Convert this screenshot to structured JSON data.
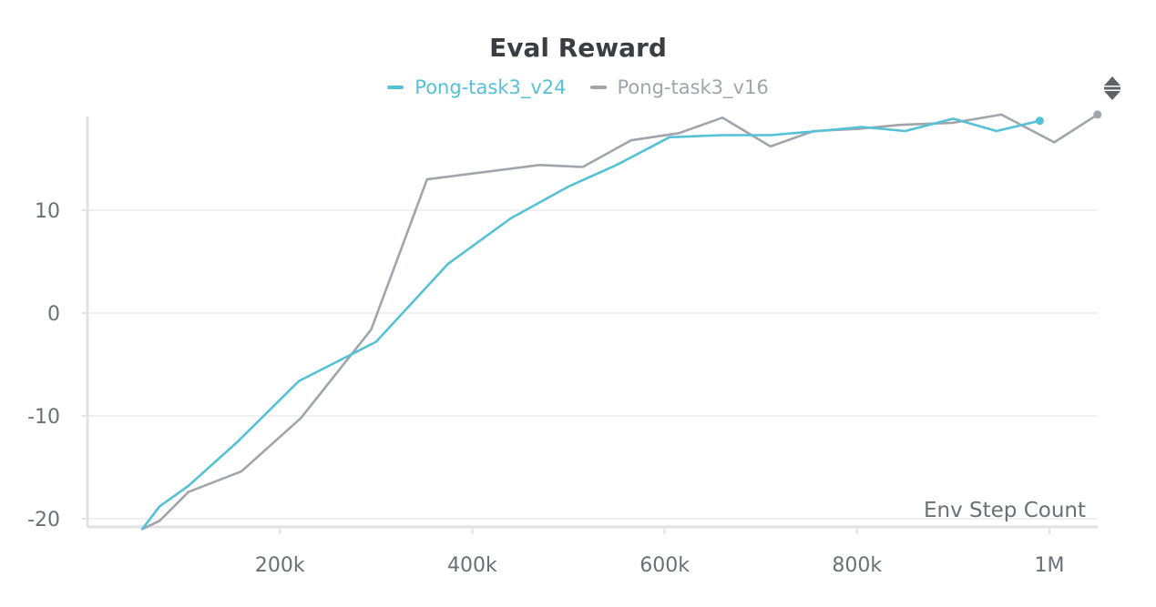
{
  "chart_data": {
    "type": "line",
    "title": "Eval Reward",
    "xlabel": "Env Step Count",
    "ylabel": "",
    "xlim": [
      0,
      1050000
    ],
    "ylim": [
      -21,
      20
    ],
    "x_ticks": [
      200000,
      400000,
      600000,
      800000,
      1000000
    ],
    "x_tick_labels": [
      "200k",
      "400k",
      "600k",
      "800k",
      "1M"
    ],
    "y_ticks": [
      -20,
      -10,
      0,
      10
    ],
    "y_tick_labels": [
      "-20",
      "-10",
      "0",
      "10"
    ],
    "grid": true,
    "legend_position": "top-center",
    "series": [
      {
        "name": "Pong-task3_v24",
        "color": "#55c1d6",
        "x": [
          57000,
          75000,
          105000,
          155000,
          220000,
          300000,
          375000,
          440000,
          500000,
          550000,
          605000,
          660000,
          710000,
          760000,
          805000,
          850000,
          900000,
          945000,
          990000
        ],
        "y": [
          -21,
          -18.8,
          -16.8,
          -12.6,
          -6.6,
          -2.8,
          4.8,
          9.2,
          12.3,
          14.4,
          17.1,
          17.3,
          17.3,
          17.7,
          18.1,
          17.7,
          18.9,
          17.7,
          18.7
        ]
      },
      {
        "name": "Pong-task3_v16",
        "color": "#a1a5ab",
        "x": [
          57000,
          75000,
          105000,
          160000,
          222000,
          295000,
          353000,
          470000,
          515000,
          565000,
          615000,
          660000,
          710000,
          755000,
          800000,
          845000,
          900000,
          950000,
          1005000,
          1050000
        ],
        "y": [
          -21,
          -20.2,
          -17.4,
          -15.4,
          -10.2,
          -1.6,
          13.0,
          14.4,
          14.2,
          16.8,
          17.5,
          19.0,
          16.2,
          17.7,
          17.9,
          18.3,
          18.5,
          19.3,
          16.6,
          19.3
        ]
      }
    ]
  }
}
